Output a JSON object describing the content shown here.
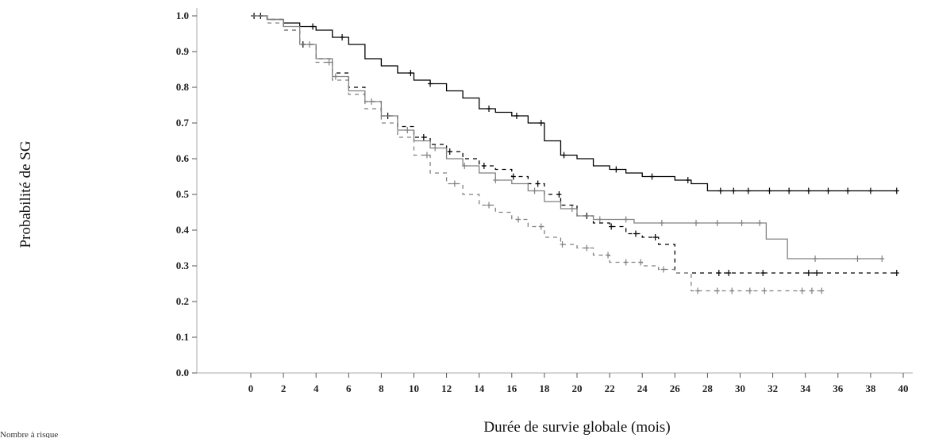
{
  "chart_data": {
    "type": "line",
    "title": "",
    "xlabel": "Durée de survie globale (mois)",
    "ylabel": "Probabilité de SG",
    "footnote": "Nombre à risque",
    "xlim": [
      0,
      40
    ],
    "ylim": [
      0,
      1
    ],
    "xticks": [
      0,
      2,
      4,
      6,
      8,
      10,
      12,
      14,
      16,
      18,
      20,
      22,
      24,
      26,
      28,
      30,
      32,
      34,
      36,
      38,
      40
    ],
    "yticks": [
      0.0,
      0.1,
      0.2,
      0.3,
      0.4,
      0.5,
      0.6,
      0.7,
      0.8,
      0.9,
      1.0
    ],
    "ytick_labels": [
      "0.0",
      "0.1",
      "0.2",
      "0.3",
      "0.4",
      "0.5",
      "0.6",
      "0.7",
      "0.8",
      "0.9",
      "1.0"
    ],
    "grid": false,
    "legend": "none",
    "series": [
      {
        "color": "#000000",
        "dash": "solid",
        "x": [
          0,
          1,
          2,
          3,
          4,
          5,
          6,
          7,
          8,
          9,
          10,
          11,
          12,
          13,
          14,
          15,
          16,
          17,
          18,
          19,
          20,
          21,
          22,
          23,
          24,
          25,
          26,
          27,
          28,
          39.6
        ],
        "y": [
          1.0,
          0.99,
          0.98,
          0.97,
          0.96,
          0.94,
          0.92,
          0.88,
          0.86,
          0.84,
          0.82,
          0.81,
          0.79,
          0.77,
          0.74,
          0.73,
          0.72,
          0.7,
          0.65,
          0.61,
          0.6,
          0.58,
          0.57,
          0.56,
          0.55,
          0.55,
          0.54,
          0.53,
          0.51,
          0.51
        ],
        "censored_x": [
          0.2,
          0.6,
          3.8,
          5.6,
          9.8,
          11.0,
          14.6,
          16.3,
          17.8,
          19.2,
          22.4,
          24.6,
          26.8,
          28.8,
          29.6,
          30.5,
          31.8,
          33.0,
          34.2,
          35.4,
          36.6,
          38.0,
          39.6
        ]
      },
      {
        "color": "#000000",
        "dash": "dashed",
        "x": [
          0,
          1,
          2,
          3,
          4,
          5,
          6,
          7,
          8,
          9,
          10,
          11,
          12,
          13,
          14,
          15,
          16,
          17,
          18,
          19,
          20,
          21,
          22,
          23,
          24,
          25,
          26,
          39.6
        ],
        "y": [
          1.0,
          0.99,
          0.96,
          0.92,
          0.88,
          0.84,
          0.8,
          0.76,
          0.72,
          0.69,
          0.66,
          0.64,
          0.62,
          0.6,
          0.58,
          0.57,
          0.55,
          0.53,
          0.5,
          0.47,
          0.44,
          0.42,
          0.41,
          0.39,
          0.38,
          0.36,
          0.28,
          0.28
        ],
        "censored_x": [
          3.2,
          8.4,
          10.6,
          12.2,
          14.3,
          16.1,
          17.6,
          18.9,
          20.6,
          22.1,
          23.6,
          24.8,
          28.7,
          29.3,
          31.4,
          34.2,
          34.7,
          39.6
        ]
      },
      {
        "color": "#808080",
        "dash": "solid",
        "x": [
          0,
          1,
          2,
          3,
          4,
          5,
          6,
          7,
          8,
          9,
          10,
          11,
          12,
          13,
          14,
          15,
          16,
          17,
          18,
          19,
          20,
          21,
          23.5,
          31.6,
          32.9,
          38.7
        ],
        "y": [
          1.0,
          0.99,
          0.97,
          0.92,
          0.88,
          0.83,
          0.79,
          0.76,
          0.72,
          0.68,
          0.65,
          0.63,
          0.6,
          0.58,
          0.56,
          0.54,
          0.53,
          0.51,
          0.48,
          0.46,
          0.44,
          0.43,
          0.42,
          0.375,
          0.32,
          0.32
        ],
        "censored_x": [
          3.6,
          5.2,
          7.4,
          9.6,
          11.3,
          13.1,
          15.0,
          17.4,
          19.7,
          21.4,
          23.0,
          25.2,
          27.3,
          28.6,
          30.1,
          31.2,
          34.6,
          37.2,
          38.7
        ]
      },
      {
        "color": "#808080",
        "dash": "dashed",
        "x": [
          0,
          1,
          2,
          3,
          4,
          5,
          6,
          7,
          8,
          9,
          10,
          11,
          12,
          13,
          14,
          15,
          16,
          17,
          18,
          19,
          20,
          21,
          22,
          23,
          24,
          25,
          26,
          27,
          35
        ],
        "y": [
          1.0,
          0.98,
          0.96,
          0.92,
          0.87,
          0.82,
          0.78,
          0.74,
          0.7,
          0.66,
          0.61,
          0.56,
          0.53,
          0.5,
          0.47,
          0.45,
          0.43,
          0.41,
          0.38,
          0.36,
          0.35,
          0.33,
          0.31,
          0.31,
          0.3,
          0.29,
          0.28,
          0.23,
          0.23
        ],
        "censored_x": [
          4.8,
          10.8,
          12.5,
          14.6,
          16.4,
          17.8,
          19.1,
          20.6,
          21.9,
          23.0,
          23.9,
          25.3,
          27.4,
          28.6,
          29.5,
          30.6,
          31.5,
          33.8,
          34.4,
          35.0
        ]
      }
    ]
  }
}
